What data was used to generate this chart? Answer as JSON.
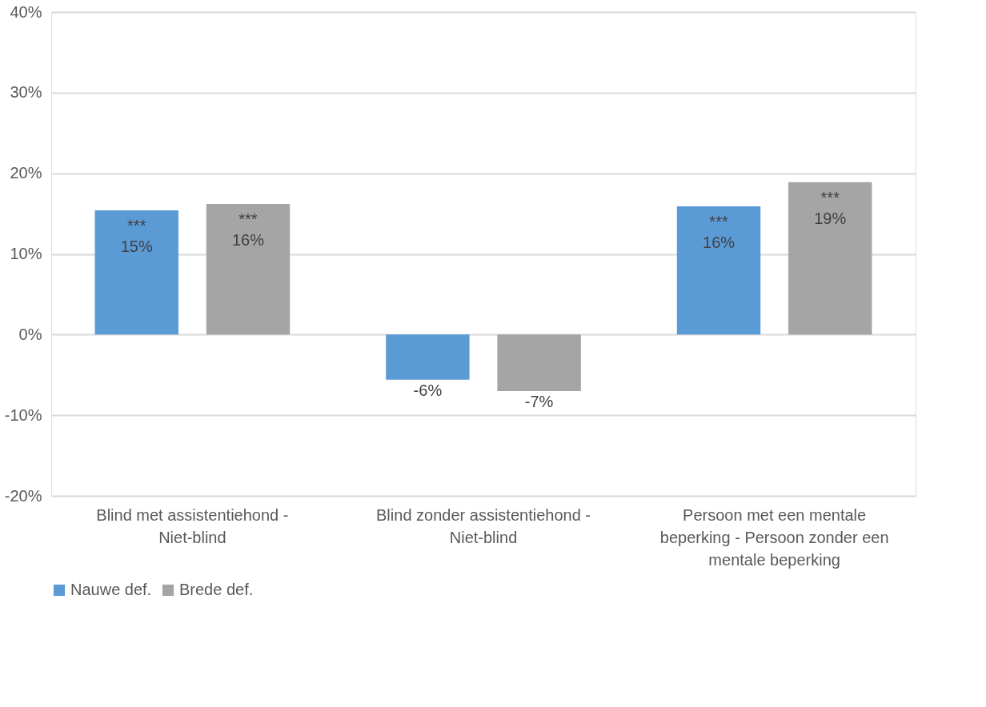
{
  "chart_data": {
    "type": "bar",
    "categories": [
      "Blind met assistentiehond - Niet-blind",
      "Blind zonder assistentiehond - Niet-blind",
      "Persoon met een mentale beperking - Persoon zonder een mentale beperking"
    ],
    "series": [
      {
        "name": "Nauwe def.",
        "color": "#5b9bd5",
        "values": [
          15.4,
          -5.6,
          15.9
        ],
        "value_labels": [
          "***\n15%",
          "-6%",
          "***\n16%"
        ]
      },
      {
        "name": "Brede def.",
        "color": "#a5a5a5",
        "values": [
          16.2,
          -7.0,
          18.9
        ],
        "value_labels": [
          "***\n16%",
          "-7%",
          "***\n19%"
        ]
      }
    ],
    "ylim": [
      -20,
      40
    ],
    "yticks": [
      {
        "value": -20,
        "label": "-20%"
      },
      {
        "value": -10,
        "label": "-10%"
      },
      {
        "value": 0,
        "label": "0%"
      },
      {
        "value": 10,
        "label": "10%"
      },
      {
        "value": 20,
        "label": "20%"
      },
      {
        "value": 30,
        "label": "30%"
      },
      {
        "value": 40,
        "label": "40%"
      }
    ],
    "grid": "y",
    "legend": "bottom"
  }
}
